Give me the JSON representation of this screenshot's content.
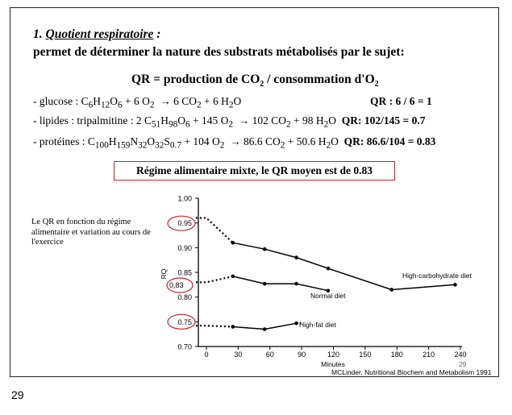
{
  "heading": {
    "number": "1.",
    "title": "Quotient respiratoire",
    "colon": " :",
    "subtitle": "permet de déterminer la nature des substrats métabolisés par le sujet:",
    "formula_a": "QR = production de CO",
    "formula_b": " / consommation d'O"
  },
  "rows": [
    {
      "label": "- glucose : ",
      "equation_text": "C6H12O6 + 6 O2 → 6 CO2 + 6 H2O",
      "qr": "QR : 6 / 6 = 1"
    },
    {
      "label": "- lipides : tripalmitine : ",
      "equation_text": "2 C51H98O6 + 145 O2 → 102 CO2 + 98 H2O",
      "qr": "QR: 102/145 = 0.7"
    },
    {
      "label": "- protéines : ",
      "equation_text": "C100H159N32O32S0.7 + 104 O2 → 86.6 CO2 + 50.6 H2O",
      "qr": "QR: 86.6/104 = 0.83"
    }
  ],
  "highlight_box": "Régime alimentaire mixte, le QR moyen est de 0.83",
  "caption": "Le QR en fonction du régime alimentaire et variation au cours de l'exercice",
  "chart_data": {
    "type": "line",
    "ylabel": "RQ",
    "xlabel": "Minutes",
    "xlim": [
      0,
      240
    ],
    "ylim": [
      0.7,
      1.0
    ],
    "xticks": [
      0,
      30,
      60,
      90,
      120,
      150,
      180,
      210,
      240
    ],
    "yticks": [
      1.0,
      0.95,
      0.9,
      0.85,
      0.8,
      0.75,
      0.7
    ],
    "ytick_labels": [
      "1.00",
      "0.95",
      "0.90",
      "0.85",
      "0.80",
      "0.75",
      "0.70"
    ],
    "circled_values": [
      "0.95",
      "0,83",
      "0.75"
    ],
    "series": [
      {
        "name": "High-carbohydrate diet",
        "dotted_lead": [
          [
            -10,
            0.96
          ],
          [
            0,
            0.96
          ],
          [
            25,
            0.91
          ]
        ],
        "points": [
          [
            25,
            0.91
          ],
          [
            55,
            0.897
          ],
          [
            85,
            0.88
          ],
          [
            115,
            0.858
          ],
          [
            175,
            0.815
          ],
          [
            235,
            0.825
          ]
        ]
      },
      {
        "name": "Normal diet",
        "dotted_lead": [
          [
            -10,
            0.83
          ],
          [
            0,
            0.83
          ],
          [
            25,
            0.842
          ]
        ],
        "points": [
          [
            25,
            0.842
          ],
          [
            55,
            0.827
          ],
          [
            85,
            0.827
          ],
          [
            115,
            0.813
          ]
        ]
      },
      {
        "name": "High-fat diet",
        "dotted_lead": [
          [
            -10,
            0.742
          ],
          [
            0,
            0.742
          ],
          [
            25,
            0.74
          ]
        ],
        "points": [
          [
            25,
            0.74
          ],
          [
            55,
            0.735
          ],
          [
            85,
            0.747
          ]
        ],
        "dotted_tail": [
          [
            85,
            0.747
          ],
          [
            90,
            0.748
          ]
        ]
      }
    ]
  },
  "chart_page_number": "29",
  "source": "MCLinder, Nutritional Biochem and Metabolism 1991",
  "page_number": "29"
}
